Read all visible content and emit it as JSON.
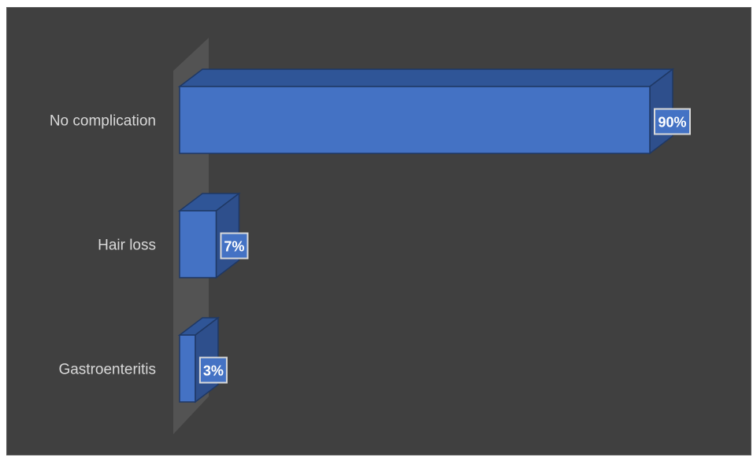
{
  "chart_data": {
    "type": "bar",
    "orientation": "horizontal",
    "style": "3d",
    "categories": [
      "No complication",
      "Hair loss",
      "Gastroenteritis"
    ],
    "values": [
      90,
      7,
      3
    ],
    "data_labels": [
      "90%",
      "7%",
      "3%"
    ],
    "unit": "%",
    "title": "",
    "xlabel": "",
    "ylabel": "",
    "xlim": [
      0,
      90
    ],
    "grid": false,
    "legend": "none",
    "colors": {
      "background": "#404040",
      "bar_front": "#4472c4",
      "bar_top": "#2f5597",
      "bar_side": "#2e4f8c",
      "bar_edge": "#1f3864",
      "wall": "#595959",
      "category_text": "#d9d9d9",
      "label_text": "#ffffff",
      "label_border": "#d9d9d9"
    }
  }
}
